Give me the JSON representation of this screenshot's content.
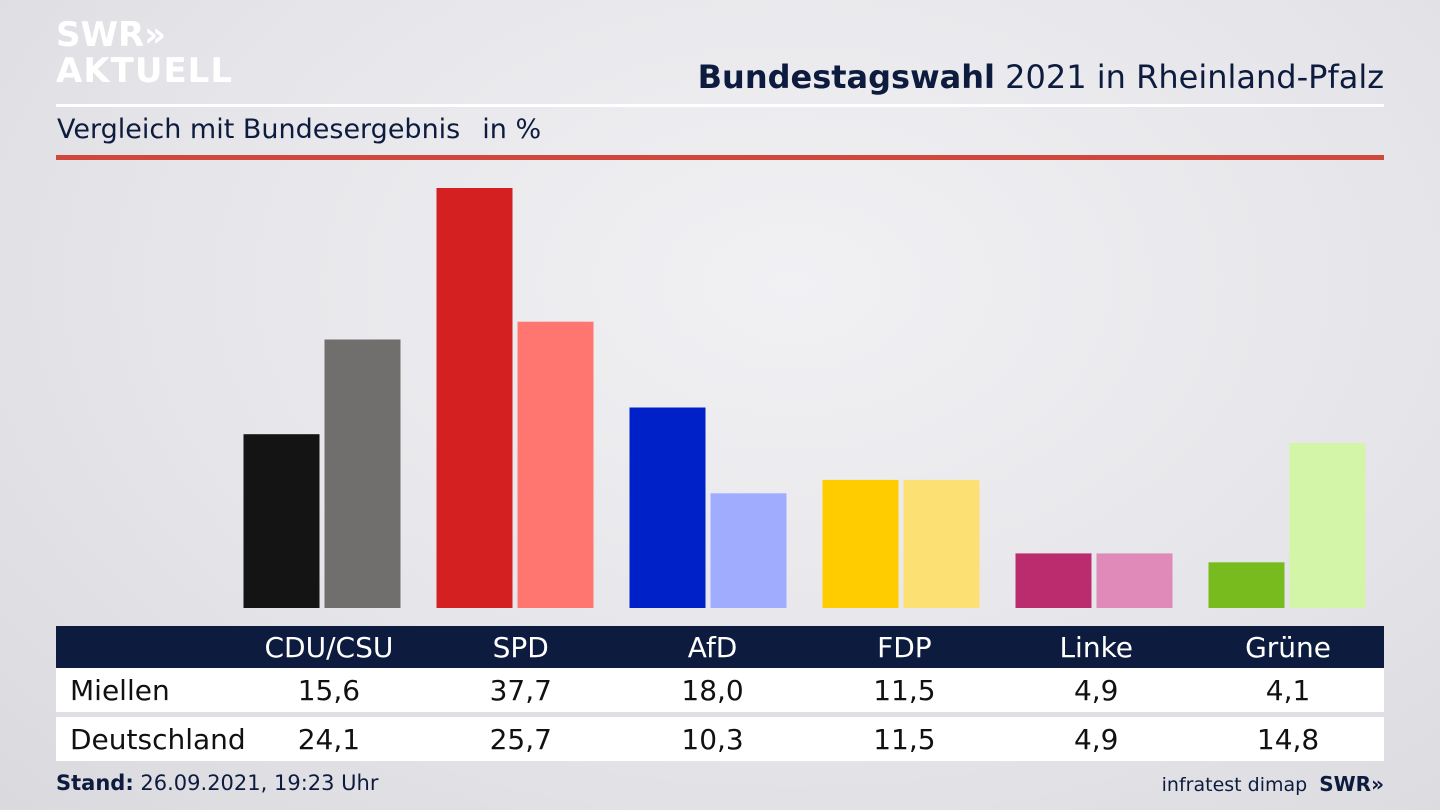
{
  "brand": {
    "logo_line1": "SWR»",
    "logo_line2": "AKTUELL"
  },
  "header": {
    "title_bold": "Bundestagswahl",
    "title_rest": " 2021 in Rheinland-Pfalz",
    "subtitle": "Vergleich mit Bundesergebnis",
    "unit": "in %"
  },
  "footer": {
    "stand_label": "Stand:",
    "stand_value": " 26.09.2021, 19:23 Uhr",
    "source": "infratest dimap",
    "source_logo": "SWR»"
  },
  "chart_data": {
    "type": "bar",
    "categories": [
      "CDU/CSU",
      "SPD",
      "AfD",
      "FDP",
      "Linke",
      "Grüne"
    ],
    "series": [
      {
        "name": "Miellen",
        "values": [
          15.6,
          37.7,
          18.0,
          11.5,
          4.9,
          4.1
        ]
      },
      {
        "name": "Deutschland",
        "values": [
          24.1,
          25.7,
          10.3,
          11.5,
          4.9,
          14.8
        ]
      }
    ],
    "display_values": {
      "Miellen": [
        "15,6",
        "37,7",
        "18,0",
        "11,5",
        "4,9",
        "4,1"
      ],
      "Deutschland": [
        "24,1",
        "25,7",
        "10,3",
        "11,5",
        "4,9",
        "14,8"
      ]
    },
    "colors": {
      "Miellen": [
        "#141414",
        "#d42020",
        "#0020c8",
        "#ffcc00",
        "#bb2c6f",
        "#78bb1e"
      ],
      "Deutschland": [
        "#706f6d",
        "#ff7670",
        "#a0adff",
        "#fde073",
        "#df8ab9",
        "#d2f5a8"
      ]
    },
    "ylim": [
      0,
      37.7
    ],
    "grid": false,
    "title": "Bundestagswahl 2021 in Rheinland-Pfalz",
    "ylabel": "in %"
  }
}
